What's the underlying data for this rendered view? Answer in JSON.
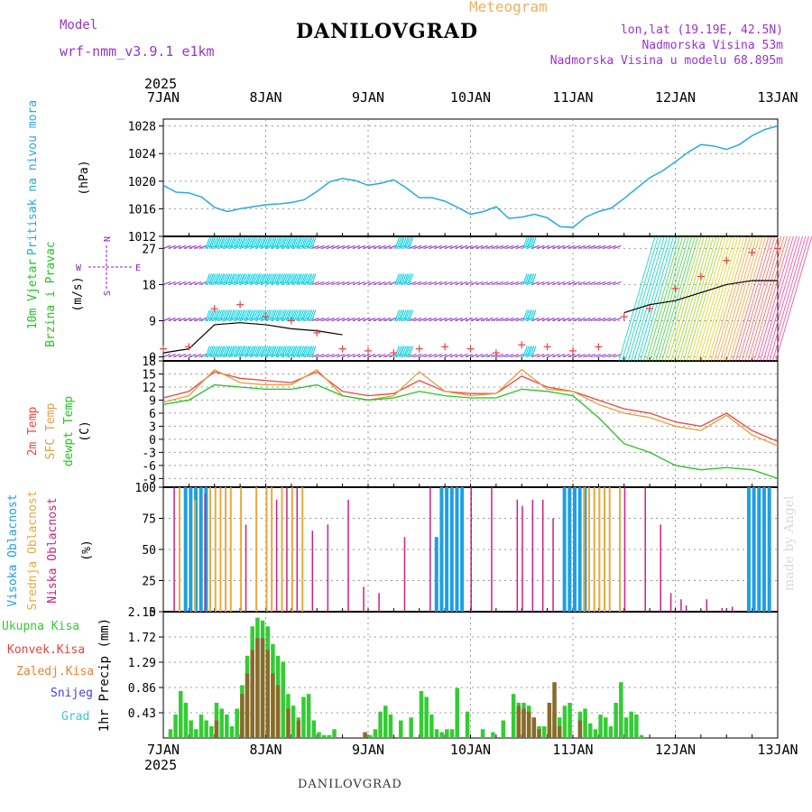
{
  "header": {
    "title": "DANILOVGRAD",
    "subtitle": "Meteogram",
    "model_label": "Model",
    "model_value": "wrf-nmm_v3.9.1  e1km",
    "location_lines": [
      "lon,lat (19.19E, 42.5N)",
      "Nadmorska Visina 53m",
      "Nadmorska Visina u modelu 68.895m"
    ]
  },
  "footer": "DANILOVGRAD",
  "credit": "made by Angel",
  "colors": {
    "pressure": "#27a9e1",
    "wind_cyan": "#00cfe0",
    "wind_purple": "#8a1fc7",
    "temp_2m": "#f0453e",
    "temp_sfc": "#e0a040",
    "dewpt": "#22c422",
    "cloud_high": "#1e9fe3",
    "cloud_mid": "#e8a93c",
    "cloud_low": "#cc1f88",
    "precip_total": "#33cc33",
    "precip_conv": "#e8433a",
    "precip_frz": "#f07f2e",
    "snow": "#4444dd",
    "grad": "#33cccc",
    "header_purple": "#9933cc",
    "header_orange": "#f0b060"
  },
  "chart_data": [
    {
      "id": "pressure",
      "type": "line",
      "ylabel": "Pritisak na nivou mora",
      "unit": "(hPa)",
      "ylim": [
        1012,
        1029
      ],
      "yticks": [
        1012,
        1016,
        1020,
        1024,
        1028
      ],
      "x_top": {
        "year": "2025",
        "labels": [
          "7JAN",
          "8JAN",
          "9JAN",
          "10JAN",
          "11JAN",
          "12JAN",
          "13JAN"
        ]
      },
      "x": [
        0,
        0.125,
        0.25,
        0.375,
        0.5,
        0.625,
        0.75,
        0.875,
        1,
        1.125,
        1.25,
        1.375,
        1.5,
        1.625,
        1.75,
        1.875,
        2,
        2.125,
        2.25,
        2.375,
        2.5,
        2.625,
        2.75,
        2.875,
        3,
        3.125,
        3.25,
        3.375,
        3.5,
        3.625,
        3.75,
        3.875,
        4,
        4.125,
        4.25,
        4.375,
        4.5,
        4.625,
        4.75,
        4.875,
        5,
        5.125,
        5.25,
        5.375,
        5.5,
        5.625,
        5.75,
        5.875,
        6
      ],
      "values": [
        1019.4,
        1018.4,
        1018.3,
        1017.7,
        1016.2,
        1015.6,
        1016.0,
        1016.3,
        1016.6,
        1016.7,
        1016.9,
        1017.3,
        1018.5,
        1019.9,
        1020.4,
        1020.1,
        1019.4,
        1019.7,
        1020.2,
        1019.0,
        1017.6,
        1017.6,
        1017.1,
        1016.2,
        1015.2,
        1015.6,
        1016.3,
        1014.6,
        1014.8,
        1015.2,
        1014.7,
        1013.4,
        1013.3,
        1014.8,
        1015.6,
        1016.1,
        1017.5,
        1019.0,
        1020.5,
        1021.5,
        1022.8,
        1024.2,
        1025.3,
        1025.1,
        1024.6,
        1025.3,
        1026.6,
        1027.5,
        1028.0
      ]
    },
    {
      "id": "wind",
      "type": "line",
      "ylabel": "10m Vjetar",
      "ylabel2": "Brzina i Pravac",
      "unit": "(m/s)",
      "ylim": [
        -1,
        30
      ],
      "yticks": [
        0,
        9,
        18,
        27
      ],
      "compass": [
        "N",
        "S",
        "W",
        "E"
      ],
      "x": [
        0,
        0.25,
        0.5,
        0.75,
        1,
        1.25,
        1.5,
        1.75,
        2,
        2.25,
        2.5,
        2.75,
        3,
        3.25,
        3.5,
        3.75,
        4,
        4.25,
        4.5,
        4.75,
        5,
        5.25,
        5.5,
        5.75,
        6
      ],
      "series": [
        {
          "values": [
            1,
            2,
            8,
            8.5,
            8,
            7,
            6.5,
            5.5,
            null,
            null,
            null,
            null,
            null,
            null,
            null,
            null,
            null,
            null,
            null,
            null,
            null,
            null,
            null,
            null,
            null
          ]
        },
        {
          "values": [
            null,
            null,
            null,
            null,
            null,
            null,
            null,
            null,
            null,
            null,
            null,
            null,
            null,
            null,
            null,
            null,
            null,
            null,
            11,
            13,
            14,
            16,
            18,
            19,
            19
          ]
        }
      ],
      "gust_values": [
        2,
        2.5,
        12,
        13,
        10,
        9,
        6,
        2,
        1.5,
        1,
        2,
        2.5,
        2,
        1,
        3,
        2.5,
        1.5,
        2.5,
        10,
        12,
        17,
        20,
        24,
        26,
        27
      ]
    },
    {
      "id": "temperature",
      "type": "line",
      "ylabel": "2m Temp",
      "ylabel2": "SFC Temp",
      "ylabel3": "dewpt Temp",
      "unit": "(C)",
      "ylim": [
        -11,
        18
      ],
      "yticks": [
        -9,
        -6,
        -3,
        0,
        3,
        6,
        9,
        12,
        15,
        18
      ],
      "x": [
        0,
        0.25,
        0.5,
        0.75,
        1,
        1.25,
        1.5,
        1.75,
        2,
        2.25,
        2.5,
        2.75,
        3,
        3.25,
        3.5,
        3.75,
        4,
        4.25,
        4.5,
        4.75,
        5,
        5.25,
        5.5,
        5.75,
        6
      ],
      "series": [
        {
          "name": "2m Temp",
          "values": [
            9.5,
            11,
            15.5,
            14,
            13.5,
            13,
            15.5,
            11,
            10,
            10.5,
            13.5,
            11,
            10.5,
            10.5,
            14.5,
            12,
            11,
            9,
            7,
            6,
            4,
            3,
            6,
            2,
            -0.5
          ]
        },
        {
          "name": "SFC Temp",
          "values": [
            8.5,
            10,
            16,
            13,
            12.5,
            12.5,
            16,
            10,
            9,
            10,
            15.5,
            11,
            10,
            10.5,
            16,
            11.5,
            11,
            8,
            6,
            5,
            3,
            2,
            5.5,
            1,
            -1.5
          ]
        },
        {
          "name": "dewpt Temp",
          "values": [
            8,
            9,
            12.5,
            12,
            11.5,
            11.5,
            12.5,
            10,
            9,
            9.5,
            11,
            10,
            9.5,
            9.5,
            11.5,
            11,
            10,
            5,
            -1,
            -3,
            -6,
            -7,
            -6.5,
            -7,
            -9
          ]
        }
      ]
    },
    {
      "id": "clouds",
      "type": "bar",
      "ylabel": "Visoka Oblacnost",
      "ylabel2": "Srednja Oblacnost",
      "ylabel3": "Niska Oblacnost",
      "unit": "(%)",
      "ylim": [
        0,
        100
      ],
      "yticks": [
        0,
        25,
        50,
        75,
        100
      ],
      "series": [
        {
          "name": "Visoka Oblacnost",
          "x": [
            0.2,
            0.25,
            0.3,
            0.35,
            0.4,
            2.65,
            2.7,
            2.75,
            2.8,
            2.85,
            2.9,
            3.9,
            3.95,
            4.0,
            4.05,
            4.1,
            5.7,
            5.75,
            5.8,
            5.85,
            5.9
          ],
          "values": [
            100,
            100,
            100,
            100,
            100,
            60,
            100,
            100,
            100,
            100,
            100,
            100,
            100,
            100,
            100,
            100,
            100,
            100,
            100,
            100,
            100
          ]
        },
        {
          "name": "Srednja Oblacnost",
          "x": [
            0.15,
            0.3,
            0.45,
            0.5,
            0.55,
            0.6,
            0.65,
            0.75,
            0.9,
            1.0,
            1.05,
            1.15,
            1.25,
            1.35,
            4.1,
            4.15,
            4.2,
            4.25,
            4.3,
            4.35,
            4.45
          ],
          "values": [
            100,
            90,
            100,
            100,
            100,
            100,
            100,
            100,
            100,
            100,
            100,
            100,
            100,
            100,
            100,
            100,
            100,
            100,
            100,
            100,
            100
          ]
        },
        {
          "name": "Niska Oblacnost",
          "x": [
            0.1,
            0.4,
            0.8,
            1.1,
            1.2,
            1.3,
            1.45,
            1.6,
            1.8,
            1.95,
            2.1,
            2.35,
            2.6,
            3.0,
            3.2,
            3.45,
            3.5,
            3.6,
            3.7,
            3.8,
            4.5,
            4.7,
            4.85,
            4.95,
            5.05,
            5.1,
            5.3,
            5.45,
            5.55
          ],
          "values": [
            100,
            95,
            70,
            90,
            100,
            100,
            65,
            70,
            90,
            20,
            15,
            60,
            100,
            100,
            100,
            90,
            85,
            90,
            90,
            75,
            100,
            100,
            70,
            15,
            10,
            5,
            10,
            3,
            4
          ]
        }
      ]
    },
    {
      "id": "precip",
      "type": "bar",
      "ylabel": "1hr Precip",
      "unit": "(mm)",
      "ylim": [
        0,
        2.15
      ],
      "yticks": [
        0.43,
        0.86,
        1.29,
        1.72,
        2.15
      ],
      "x_bottom": {
        "year": "2025",
        "labels": [
          "7JAN",
          "8JAN",
          "9JAN",
          "10JAN",
          "11JAN",
          "12JAN",
          "13JAN"
        ]
      },
      "legend": [
        "Ukupna Kisa",
        "Konvek.Kisa",
        "Zaledj.Kisa",
        "Snijeg",
        "Grad"
      ],
      "series": [
        {
          "name": "Ukupna Kisa",
          "x": [
            0.05,
            0.1,
            0.15,
            0.2,
            0.25,
            0.3,
            0.35,
            0.4,
            0.45,
            0.5,
            0.55,
            0.6,
            0.65,
            0.7,
            0.75,
            0.8,
            0.85,
            0.9,
            0.95,
            1.0,
            1.05,
            1.1,
            1.15,
            1.2,
            1.25,
            1.3,
            1.35,
            1.4,
            1.45,
            1.5,
            1.55,
            1.6,
            1.65,
            2.0,
            2.05,
            2.1,
            2.15,
            2.2,
            2.3,
            2.4,
            2.5,
            2.55,
            2.6,
            2.65,
            2.7,
            2.75,
            2.8,
            2.85,
            2.95,
            3.1,
            3.2,
            3.3,
            3.4,
            3.45,
            3.5,
            3.55,
            3.6,
            3.65,
            3.7,
            3.75,
            3.8,
            3.85,
            3.9,
            3.95,
            4.05,
            4.1,
            4.15,
            4.2,
            4.25,
            4.3,
            4.35,
            4.4,
            4.45,
            4.5,
            4.55,
            4.6,
            4.65
          ],
          "values": [
            0.15,
            0.4,
            0.8,
            0.6,
            0.3,
            0.15,
            0.4,
            0.3,
            0.2,
            0.6,
            0.5,
            0.4,
            0.2,
            0.5,
            0.9,
            1.4,
            1.9,
            2.05,
            2.0,
            1.9,
            1.6,
            1.4,
            1.3,
            0.75,
            0.55,
            0.35,
            0.7,
            0.75,
            0.3,
            0.1,
            0.05,
            0.05,
            0.15,
            0.05,
            0.15,
            0.45,
            0.55,
            0.4,
            0.3,
            0.35,
            0.8,
            0.7,
            0.4,
            0.15,
            0.1,
            0.15,
            0.15,
            0.85,
            0.45,
            0.15,
            0.1,
            0.3,
            0.75,
            0.6,
            0.6,
            0.55,
            0.3,
            0.2,
            0.2,
            0.2,
            0.45,
            0.35,
            0.55,
            0.6,
            0.45,
            0.5,
            0.25,
            0.15,
            0.4,
            0.35,
            0.2,
            0.6,
            0.95,
            0.35,
            0.45,
            0.4,
            0.05
          ]
        },
        {
          "name": "Konvek.Kisa",
          "x": [
            0.5,
            0.75,
            0.8,
            0.85,
            0.9,
            0.95,
            1.0,
            1.05,
            1.1,
            1.2,
            1.3,
            1.95,
            3.45,
            3.5,
            3.55,
            3.6,
            3.65,
            3.75,
            3.8,
            3.85,
            4.05
          ],
          "values": [
            0.3,
            0.75,
            1.1,
            1.5,
            1.7,
            1.7,
            1.5,
            1.1,
            0.9,
            0.5,
            0.3,
            0.1,
            0.55,
            0.5,
            0.45,
            0.35,
            0.15,
            0.6,
            0.95,
            0.2,
            0.3
          ]
        }
      ]
    }
  ]
}
